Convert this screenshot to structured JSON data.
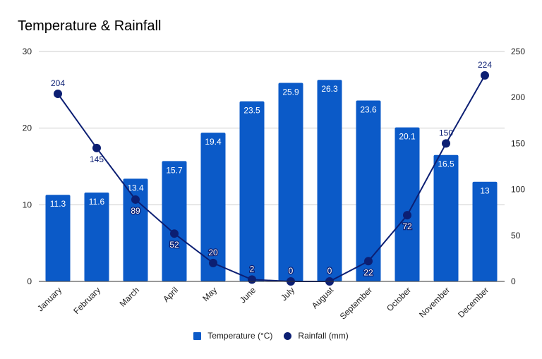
{
  "chart_data": {
    "type": "bar+line",
    "title": "Temperature & Rainfall",
    "categories": [
      "January",
      "February",
      "March",
      "April",
      "May",
      "June",
      "July",
      "August",
      "September",
      "October",
      "November",
      "December"
    ],
    "series": [
      {
        "name": "Temperature (°C)",
        "type": "bar",
        "axis": "left",
        "color": "#0b5ac8",
        "values": [
          11.3,
          11.6,
          13.4,
          15.7,
          19.4,
          23.5,
          25.9,
          26.3,
          23.6,
          20.1,
          16.5,
          13
        ],
        "labels": [
          "11.3",
          "11.6",
          "13.4",
          "15.7",
          "19.4",
          "23.5",
          "25.9",
          "26.3",
          "23.6",
          "20.1",
          "16.5",
          "13"
        ]
      },
      {
        "name": "Rainfall (mm)",
        "type": "line",
        "axis": "right",
        "color": "#0c1f73",
        "values": [
          204,
          145,
          89,
          52,
          20,
          2,
          0,
          0,
          22,
          72,
          150,
          224
        ],
        "labels": [
          "204",
          "145",
          "89",
          "52",
          "20",
          "2",
          "0",
          "0",
          "22",
          "72",
          "150",
          "224"
        ]
      }
    ],
    "left_axis": {
      "ylim": [
        0,
        30
      ],
      "ticks": [
        "0",
        "10",
        "20",
        "30"
      ],
      "tick_values": [
        0,
        10,
        20,
        30
      ]
    },
    "right_axis": {
      "ylim": [
        0,
        250
      ],
      "ticks": [
        "0",
        "50",
        "100",
        "150",
        "200",
        "250"
      ],
      "tick_values": [
        0,
        50,
        100,
        150,
        200,
        250
      ]
    },
    "xlabel": "",
    "ylabel": "",
    "grid": true,
    "legend_position": "bottom"
  },
  "legend": {
    "items": [
      {
        "label": "Temperature (°C)"
      },
      {
        "label": "Rainfall (mm)"
      }
    ]
  }
}
